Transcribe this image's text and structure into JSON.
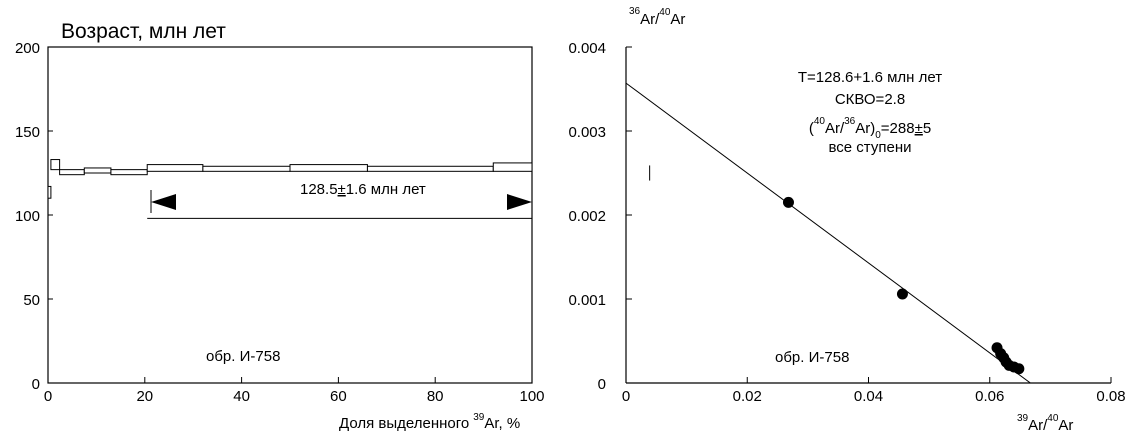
{
  "chart_data": [
    {
      "type": "age_spectrum",
      "title": "Возраст, млн лет",
      "xlabel": "Доля выделенного",
      "xlabel_sup": "39",
      "xlabel_tail": "Ar, %",
      "xlim": [
        0,
        100
      ],
      "ylim": [
        0,
        200
      ],
      "xticks": [
        0,
        20,
        40,
        60,
        80,
        100
      ],
      "yticks": [
        0,
        50,
        100,
        150,
        200
      ],
      "steps": [
        {
          "x0": 0,
          "x1": 0.6,
          "y_low": 110,
          "y_high": 117
        },
        {
          "x0": 0.6,
          "x1": 2.4,
          "y_low": 127,
          "y_high": 133
        },
        {
          "x0": 2.4,
          "x1": 7.5,
          "y_low": 124,
          "y_high": 127
        },
        {
          "x0": 7.5,
          "x1": 13,
          "y_low": 125,
          "y_high": 128
        },
        {
          "x0": 13,
          "x1": 20.5,
          "y_low": 124,
          "y_high": 127
        },
        {
          "x0": 20.5,
          "x1": 32,
          "y_low": 126,
          "y_high": 130
        },
        {
          "x0": 32,
          "x1": 50,
          "y_low": 126,
          "y_high": 129
        },
        {
          "x0": 50,
          "x1": 66,
          "y_low": 126,
          "y_high": 130
        },
        {
          "x0": 66,
          "x1": 92,
          "y_low": 126,
          "y_high": 129
        },
        {
          "x0": 92,
          "x1": 100,
          "y_low": 126,
          "y_high": 131
        }
      ],
      "plateau": {
        "x_start": 20.5,
        "x_end": 100,
        "y": 98,
        "label": "128.5±1.6 млн лет",
        "label_main": "128.5",
        "label_pm": "±",
        "label_rest": "1.6 млн лет"
      },
      "sample_label": "обр. И-758"
    },
    {
      "type": "scatter",
      "title": "",
      "ylabel_sup1": "36",
      "ylabel_mid": "Ar/",
      "ylabel_sup2": "40",
      "ylabel_tail": "Ar",
      "xlabel_sup1": "39",
      "xlabel_mid": "Ar/",
      "xlabel_sup2": "40",
      "xlabel_tail": "Ar",
      "xlim": [
        0,
        0.08
      ],
      "ylim": [
        0,
        0.004
      ],
      "xticks": [
        "0",
        "0.02",
        "0.04",
        "0.06",
        "0.08"
      ],
      "yticks": [
        "0",
        "0.001",
        "0.002",
        "0.003",
        "0.004"
      ],
      "points": [
        {
          "x": 0.0268,
          "y": 0.00215
        },
        {
          "x": 0.0456,
          "y": 0.00106
        },
        {
          "x": 0.0612,
          "y": 0.00042
        },
        {
          "x": 0.0618,
          "y": 0.00035
        },
        {
          "x": 0.0623,
          "y": 0.0003
        },
        {
          "x": 0.0627,
          "y": 0.00025
        },
        {
          "x": 0.0632,
          "y": 0.00021
        },
        {
          "x": 0.064,
          "y": 0.00019
        },
        {
          "x": 0.0648,
          "y": 0.00017
        }
      ],
      "fit_line": {
        "y_intercept": 0.00357,
        "x_intercept": 0.0667
      },
      "error_bar": {
        "x": 0.0039,
        "y_low": 0.00241,
        "y_high": 0.00259
      },
      "annotation": {
        "line1": "T=128.6+1.6 млн лет",
        "line2": "СКВО=2.8",
        "line3_open": "(",
        "line3_sup1": "40",
        "line3_mid": "Ar/",
        "line3_sup2": "36",
        "line3_close": "Ar)",
        "line3_sub": "0",
        "line3_eq": "=288",
        "line3_pm": "±",
        "line3_tail": "5",
        "line4": "все ступени"
      },
      "sample_label": "обр. И-758"
    }
  ]
}
